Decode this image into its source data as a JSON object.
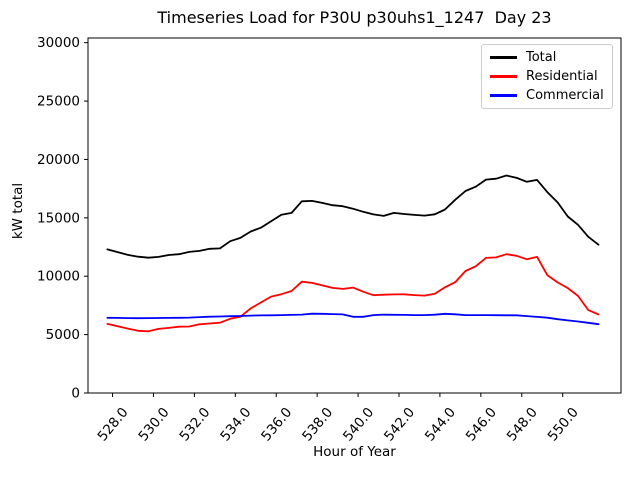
{
  "figure": {
    "title": "Timeseries Load for P30U p30uhs1_1247  Day 23",
    "xlabel": "Hour of Year",
    "ylabel": "kW total"
  },
  "chart_data": {
    "type": "line",
    "title": "Timeseries Load for P30U p30uhs1_1247  Day 23",
    "xlabel": "Hour of Year",
    "ylabel": "kW total",
    "grid": false,
    "legend_position": "upper right",
    "xlim": [
      526.8,
      552.85
    ],
    "ylim": [
      0,
      30400
    ],
    "x_ticks": [
      528,
      530,
      532,
      534,
      536,
      538,
      540,
      542,
      544,
      546,
      548,
      550
    ],
    "x_tick_labels": [
      "528.0",
      "530.0",
      "532.0",
      "534.0",
      "536.0",
      "538.0",
      "540.0",
      "542.0",
      "544.0",
      "546.0",
      "548.0",
      "550.0"
    ],
    "y_ticks": [
      0,
      5000,
      10000,
      15000,
      20000,
      25000,
      30000
    ],
    "y_tick_labels": [
      "0",
      "5000",
      "10000",
      "15000",
      "20000",
      "25000",
      "30000"
    ],
    "x": [
      527.75,
      528.25,
      528.75,
      529.25,
      529.75,
      530.25,
      530.75,
      531.25,
      531.75,
      532.25,
      532.75,
      533.25,
      533.75,
      534.25,
      534.75,
      535.25,
      535.75,
      536.25,
      536.75,
      537.25,
      537.75,
      538.25,
      538.75,
      539.25,
      539.75,
      540.25,
      540.75,
      541.25,
      541.75,
      542.25,
      542.75,
      543.25,
      543.75,
      544.25,
      544.75,
      545.25,
      545.75,
      546.25,
      546.75,
      547.25,
      547.75,
      548.25,
      548.75,
      549.25,
      549.75,
      550.25,
      550.75,
      551.25,
      551.75
    ],
    "series": [
      {
        "name": "Total",
        "color": "#000000",
        "values": [
          12300,
          12070,
          11830,
          11670,
          11585,
          11655,
          11815,
          11890,
          12080,
          12170,
          12350,
          12385,
          12995,
          13280,
          13830,
          14155,
          14710,
          15270,
          15420,
          16415,
          16450,
          16280,
          16085,
          16000,
          15780,
          15520,
          15290,
          15170,
          15425,
          15330,
          15255,
          15195,
          15305,
          15715,
          16550,
          17295,
          17670,
          18270,
          18350,
          18625,
          18420,
          18085,
          18245,
          17200,
          16320,
          15115,
          14400,
          13375,
          12700
        ]
      },
      {
        "name": "Residential",
        "color": "#ff0000",
        "values": [
          5920,
          5715,
          5515,
          5325,
          5285,
          5490,
          5578,
          5678,
          5695,
          5885,
          5955,
          6023,
          6355,
          6530,
          7247,
          7754,
          8253,
          8460,
          8733,
          9534,
          9424,
          9210,
          8997,
          8911,
          9028,
          8678,
          8375,
          8418,
          8446,
          8455,
          8380,
          8340,
          8505,
          9052,
          9500,
          10449,
          10846,
          11565,
          11608,
          11887,
          11745,
          11445,
          11658,
          10095,
          9475,
          8986,
          8319,
          7103,
          6730
        ]
      },
      {
        "name": "Commercial",
        "color": "#0000ff",
        "values": [
          6440,
          6428,
          6410,
          6404,
          6414,
          6424,
          6433,
          6443,
          6460,
          6500,
          6538,
          6555,
          6575,
          6597,
          6627,
          6643,
          6658,
          6673,
          6688,
          6713,
          6795,
          6786,
          6757,
          6735,
          6525,
          6525,
          6670,
          6715,
          6700,
          6685,
          6670,
          6670,
          6707,
          6784,
          6736,
          6670,
          6670,
          6670,
          6664,
          6657,
          6651,
          6583,
          6515,
          6450,
          6320,
          6218,
          6120,
          6010,
          5895
        ]
      }
    ]
  }
}
